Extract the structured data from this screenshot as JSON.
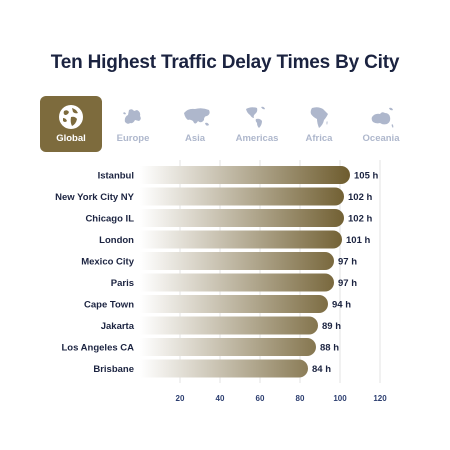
{
  "title": "Ten Highest Traffic Delay Times By City",
  "tabs": [
    {
      "label": "Global",
      "icon": "globe-icon",
      "active": true
    },
    {
      "label": "Europe",
      "icon": "europe-map-icon",
      "active": false
    },
    {
      "label": "Asia",
      "icon": "asia-map-icon",
      "active": false
    },
    {
      "label": "Americas",
      "icon": "americas-map-icon",
      "active": false
    },
    {
      "label": "Africa",
      "icon": "africa-map-icon",
      "active": false
    },
    {
      "label": "Oceania",
      "icon": "oceania-map-icon",
      "active": false
    }
  ],
  "colors": {
    "accent": "#7d6b3d",
    "bar_start": "#ffffff",
    "bar_end": "#6e5c2e",
    "title": "#1b2340",
    "tab_inactive": "#aeb7cc"
  },
  "chart_data": {
    "type": "bar",
    "orientation": "horizontal",
    "categories": [
      "Istanbul",
      "New York City NY",
      "Chicago IL",
      "London",
      "Mexico City",
      "Paris",
      "Cape Town",
      "Jakarta",
      "Los Angeles CA",
      "Brisbane"
    ],
    "values": [
      105,
      102,
      102,
      101,
      97,
      97,
      94,
      89,
      88,
      84
    ],
    "value_labels": [
      "105 h",
      "102 h",
      "102 h",
      "101 h",
      "97 h",
      "97 h",
      "94 h",
      "89 h",
      "88 h",
      "84 h"
    ],
    "xlim": [
      0,
      120
    ],
    "xticks": [
      "20",
      "40",
      "60",
      "80",
      "100",
      "120"
    ],
    "grid": true,
    "legend": "none"
  }
}
